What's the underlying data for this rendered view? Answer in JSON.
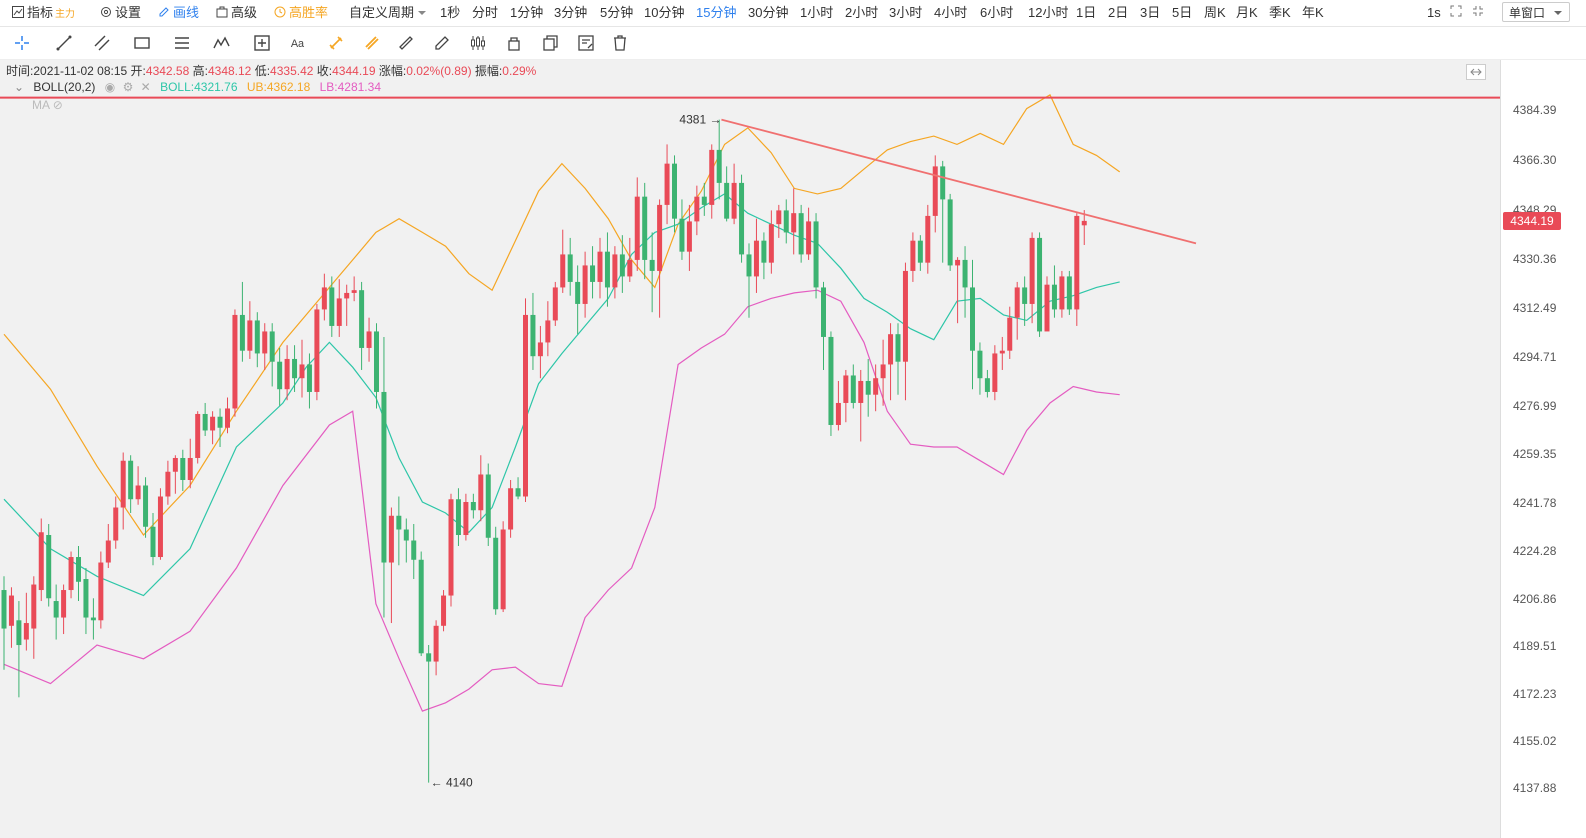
{
  "topbar": {
    "indicator": "指标",
    "indicator_sub": "主力",
    "settings": "设置",
    "draw": "画线",
    "advanced": "高级",
    "winrate": "高胜率",
    "custom_period": "自定义周期",
    "periods": [
      "1秒",
      "分时",
      "1分钟",
      "3分钟",
      "5分钟",
      "10分钟",
      "15分钟",
      "30分钟",
      "1小时",
      "2小时",
      "3小时",
      "4小时",
      "6小时",
      "12小时",
      "1日",
      "2日",
      "3日",
      "5日",
      "周K",
      "月K",
      "季K",
      "年K"
    ],
    "active_period": "15分钟",
    "interval": "1s",
    "window_mode": "单窗口"
  },
  "info": {
    "time_label": "时间:",
    "time": "2021-11-02 08:15",
    "open_label": "开:",
    "open": "4342.58",
    "high_label": "高:",
    "high": "4348.12",
    "low_label": "低:",
    "low": "4335.42",
    "close_label": "收:",
    "close": "4344.19",
    "change_label": "涨幅:",
    "change": "0.02%(0.89)",
    "amp_label": "振幅:",
    "amp": "0.29%"
  },
  "boll": {
    "name": "BOLL(20,2)",
    "mid_label": "BOLL:",
    "mid": "4321.76",
    "ub_label": "UB:",
    "ub": "4362.18",
    "lb_label": "LB:",
    "lb": "4281.34"
  },
  "ma_label": "MA",
  "annotations": {
    "high_mark": "4381",
    "low_mark": "4140"
  },
  "current_price": "4344.19",
  "colors": {
    "up": "#e94a57",
    "down": "#3cb371",
    "mid": "#2dc6a8",
    "ub": "#f5a623",
    "lb": "#e45cc1",
    "trend": "#f07070",
    "hline": "#e94a57"
  },
  "chart_data": {
    "type": "candlestick",
    "y_range": [
      4130,
      4390
    ],
    "y_ticks": [
      "4384.39",
      "4366.30",
      "4348.29",
      "4330.36",
      "4312.49",
      "4294.71",
      "4276.99",
      "4259.35",
      "4241.78",
      "4224.28",
      "4206.86",
      "4189.51",
      "4172.23",
      "4155.02",
      "4137.88"
    ],
    "horizontal_line": 4389,
    "trend_line": {
      "from_index": 96.3,
      "from_price": 4381,
      "to_index": 160,
      "to_price": 4336
    },
    "candles": [
      [
        4210,
        4196,
        4215,
        4181
      ],
      [
        4197,
        4208,
        4211,
        4189
      ],
      [
        4199,
        4190,
        4206,
        4171
      ],
      [
        4192,
        4198,
        4209,
        4188
      ],
      [
        4196,
        4212,
        4215,
        4185
      ],
      [
        4210,
        4231,
        4236,
        4206
      ],
      [
        4230,
        4207,
        4234,
        4204
      ],
      [
        4206,
        4200,
        4212,
        4192
      ],
      [
        4200,
        4210,
        4212,
        4194
      ],
      [
        4210,
        4222,
        4224,
        4207
      ],
      [
        4222,
        4213,
        4226,
        4206
      ],
      [
        4214,
        4200,
        4218,
        4194
      ],
      [
        4200,
        4199,
        4207,
        4192
      ],
      [
        4199,
        4220,
        4224,
        4196
      ],
      [
        4220,
        4228,
        4234,
        4218
      ],
      [
        4228,
        4240,
        4244,
        4225
      ],
      [
        4240,
        4257,
        4260,
        4232
      ],
      [
        4257,
        4243,
        4259,
        4238
      ],
      [
        4243,
        4248,
        4255,
        4241
      ],
      [
        4248,
        4233,
        4251,
        4229
      ],
      [
        4233,
        4222,
        4238,
        4219
      ],
      [
        4222,
        4244,
        4247,
        4221
      ],
      [
        4244,
        4253,
        4257,
        4241
      ],
      [
        4253,
        4258,
        4259,
        4245
      ],
      [
        4258,
        4250,
        4261,
        4246
      ],
      [
        4250,
        4258,
        4265,
        4247
      ],
      [
        4258,
        4274,
        4275,
        4256
      ],
      [
        4274,
        4268,
        4278,
        4266
      ],
      [
        4268,
        4273,
        4275,
        4263
      ],
      [
        4273,
        4269,
        4276,
        4262
      ],
      [
        4269,
        4276,
        4280,
        4267
      ],
      [
        4276,
        4310,
        4312,
        4273
      ],
      [
        4310,
        4297,
        4322,
        4293
      ],
      [
        4297,
        4308,
        4315,
        4294
      ],
      [
        4308,
        4296,
        4311,
        4291
      ],
      [
        4296,
        4304,
        4307,
        4290
      ],
      [
        4304,
        4293,
        4307,
        4284
      ],
      [
        4293,
        4283,
        4298,
        4277
      ],
      [
        4283,
        4294,
        4299,
        4279
      ],
      [
        4294,
        4287,
        4299,
        4282
      ],
      [
        4287,
        4292,
        4301,
        4280
      ],
      [
        4292,
        4282,
        4296,
        4276
      ],
      [
        4282,
        4312,
        4314,
        4279
      ],
      [
        4312,
        4320,
        4325,
        4308
      ],
      [
        4320,
        4306,
        4324,
        4302
      ],
      [
        4306,
        4316,
        4323,
        4302
      ],
      [
        4316,
        4318,
        4321,
        4306
      ],
      [
        4318,
        4319,
        4324,
        4315
      ],
      [
        4319,
        4298,
        4322,
        4290
      ],
      [
        4298,
        4304,
        4309,
        4293
      ],
      [
        4304,
        4282,
        4307,
        4276
      ],
      [
        4282,
        4220,
        4302,
        4200
      ],
      [
        4220,
        4237,
        4240,
        4198
      ],
      [
        4237,
        4232,
        4244,
        4219
      ],
      [
        4232,
        4228,
        4236,
        4220
      ],
      [
        4228,
        4221,
        4234,
        4214
      ],
      [
        4221,
        4187,
        4224,
        4186
      ],
      [
        4187,
        4184,
        4190,
        4140
      ],
      [
        4184,
        4197,
        4199,
        4179
      ],
      [
        4197,
        4208,
        4210,
        4195
      ],
      [
        4208,
        4243,
        4245,
        4204
      ],
      [
        4243,
        4230,
        4247,
        4226
      ],
      [
        4230,
        4242,
        4245,
        4228
      ],
      [
        4242,
        4239,
        4245,
        4236
      ],
      [
        4239,
        4252,
        4259,
        4235
      ],
      [
        4252,
        4229,
        4256,
        4226
      ],
      [
        4229,
        4203,
        4233,
        4201
      ],
      [
        4203,
        4232,
        4235,
        4202
      ],
      [
        4232,
        4247,
        4250,
        4229
      ],
      [
        4247,
        4244,
        4251,
        4243
      ],
      [
        4244,
        4310,
        4316,
        4242
      ],
      [
        4310,
        4295,
        4318,
        4290
      ],
      [
        4295,
        4300,
        4306,
        4287
      ],
      [
        4300,
        4308,
        4315,
        4295
      ],
      [
        4308,
        4320,
        4322,
        4306
      ],
      [
        4320,
        4332,
        4341,
        4318
      ],
      [
        4332,
        4322,
        4338,
        4317
      ],
      [
        4322,
        4314,
        4328,
        4303
      ],
      [
        4314,
        4328,
        4333,
        4309
      ],
      [
        4328,
        4322,
        4335,
        4316
      ],
      [
        4322,
        4333,
        4338,
        4316
      ],
      [
        4333,
        4320,
        4340,
        4313
      ],
      [
        4320,
        4332,
        4335,
        4316
      ],
      [
        4332,
        4324,
        4339,
        4318
      ],
      [
        4324,
        4330,
        4338,
        4322
      ],
      [
        4330,
        4353,
        4360,
        4326
      ],
      [
        4353,
        4330,
        4358,
        4323
      ],
      [
        4330,
        4326,
        4340,
        4311
      ],
      [
        4326,
        4350,
        4352,
        4309
      ],
      [
        4350,
        4365,
        4372,
        4343
      ],
      [
        4365,
        4345,
        4368,
        4340
      ],
      [
        4345,
        4333,
        4352,
        4330
      ],
      [
        4333,
        4344,
        4350,
        4326
      ],
      [
        4344,
        4353,
        4357,
        4339
      ],
      [
        4353,
        4350,
        4358,
        4346
      ],
      [
        4350,
        4370,
        4372,
        4345
      ],
      [
        4370,
        4358,
        4381,
        4352
      ],
      [
        4358,
        4345,
        4364,
        4344
      ],
      [
        4345,
        4358,
        4365,
        4343
      ],
      [
        4358,
        4332,
        4361,
        4329
      ],
      [
        4332,
        4324,
        4336,
        4309
      ],
      [
        4324,
        4337,
        4345,
        4318
      ],
      [
        4337,
        4329,
        4340,
        4323
      ],
      [
        4329,
        4343,
        4348,
        4325
      ],
      [
        4343,
        4348,
        4350,
        4338
      ],
      [
        4348,
        4340,
        4352,
        4336
      ],
      [
        4340,
        4347,
        4356,
        4332
      ],
      [
        4347,
        4332,
        4350,
        4329
      ],
      [
        4332,
        4344,
        4349,
        4330
      ],
      [
        4344,
        4320,
        4347,
        4316
      ],
      [
        4320,
        4302,
        4322,
        4290
      ],
      [
        4302,
        4270,
        4304,
        4266
      ],
      [
        4270,
        4278,
        4286,
        4268
      ],
      [
        4278,
        4288,
        4290,
        4271
      ],
      [
        4288,
        4278,
        4292,
        4276
      ],
      [
        4278,
        4286,
        4290,
        4264
      ],
      [
        4286,
        4281,
        4294,
        4273
      ],
      [
        4281,
        4287,
        4292,
        4275
      ],
      [
        4287,
        4292,
        4301,
        4277
      ],
      [
        4292,
        4303,
        4307,
        4279
      ],
      [
        4303,
        4293,
        4307,
        4281
      ],
      [
        4293,
        4326,
        4329,
        4279
      ],
      [
        4326,
        4337,
        4340,
        4322
      ],
      [
        4337,
        4329,
        4339,
        4326
      ],
      [
        4329,
        4346,
        4350,
        4325
      ],
      [
        4346,
        4364,
        4368,
        4340
      ],
      [
        4364,
        4352,
        4366,
        4329
      ],
      [
        4352,
        4328,
        4354,
        4326
      ],
      [
        4328,
        4330,
        4331,
        4307
      ],
      [
        4330,
        4320,
        4335,
        4309
      ],
      [
        4320,
        4297,
        4330,
        4283
      ],
      [
        4297,
        4287,
        4300,
        4281
      ],
      [
        4287,
        4282,
        4290,
        4280
      ],
      [
        4282,
        4296,
        4299,
        4279
      ],
      [
        4296,
        4297,
        4302,
        4290
      ],
      [
        4297,
        4309,
        4313,
        4294
      ],
      [
        4309,
        4320,
        4322,
        4301
      ],
      [
        4320,
        4314,
        4324,
        4306
      ],
      [
        4314,
        4338,
        4340,
        4307
      ],
      [
        4338,
        4304,
        4340,
        4302
      ],
      [
        4304,
        4321,
        4324,
        4305
      ],
      [
        4321,
        4312,
        4328,
        4309
      ],
      [
        4312,
        4324,
        4326,
        4309
      ],
      [
        4324,
        4312,
        4326,
        4310
      ],
      [
        4312,
        4346,
        4347,
        4306
      ],
      [
        4342.58,
        4344.19,
        4348.12,
        4335.42
      ]
    ],
    "boll_mid": [
      [
        0,
        4243
      ],
      [
        8,
        4225
      ],
      [
        16,
        4215
      ],
      [
        24,
        4208
      ],
      [
        32,
        4225
      ],
      [
        40,
        4262
      ],
      [
        48,
        4278
      ],
      [
        52,
        4291
      ],
      [
        56,
        4300
      ],
      [
        60,
        4291
      ],
      [
        64,
        4280
      ],
      [
        68,
        4258
      ],
      [
        72,
        4242
      ],
      [
        76,
        4238
      ],
      [
        80,
        4231
      ],
      [
        84,
        4240
      ],
      [
        88,
        4262
      ],
      [
        92,
        4285
      ],
      [
        96,
        4296
      ],
      [
        100,
        4306
      ],
      [
        104,
        4316
      ],
      [
        108,
        4332
      ],
      [
        112,
        4340
      ],
      [
        116,
        4343
      ],
      [
        120,
        4349
      ],
      [
        124,
        4354
      ],
      [
        128,
        4347
      ],
      [
        132,
        4343
      ],
      [
        136,
        4339
      ],
      [
        140,
        4336
      ],
      [
        144,
        4327
      ],
      [
        148,
        4316
      ],
      [
        152,
        4311
      ],
      [
        156,
        4305
      ],
      [
        160,
        4301
      ],
      [
        164,
        4315
      ],
      [
        168,
        4316
      ],
      [
        172,
        4310
      ],
      [
        176,
        4308
      ],
      [
        180,
        4315
      ],
      [
        184,
        4317
      ],
      [
        188,
        4320
      ],
      [
        192,
        4322
      ]
    ],
    "boll_ub": [
      [
        0,
        4303
      ],
      [
        8,
        4283
      ],
      [
        16,
        4255
      ],
      [
        24,
        4230
      ],
      [
        32,
        4248
      ],
      [
        40,
        4275
      ],
      [
        48,
        4300
      ],
      [
        56,
        4320
      ],
      [
        60,
        4330
      ],
      [
        64,
        4340
      ],
      [
        68,
        4345
      ],
      [
        72,
        4340
      ],
      [
        76,
        4335
      ],
      [
        80,
        4325
      ],
      [
        84,
        4319
      ],
      [
        88,
        4337
      ],
      [
        92,
        4355
      ],
      [
        96,
        4365
      ],
      [
        100,
        4356
      ],
      [
        104,
        4345
      ],
      [
        108,
        4330
      ],
      [
        112,
        4320
      ],
      [
        116,
        4343
      ],
      [
        120,
        4355
      ],
      [
        124,
        4372
      ],
      [
        128,
        4378
      ],
      [
        132,
        4369
      ],
      [
        136,
        4356
      ],
      [
        140,
        4354
      ],
      [
        144,
        4356
      ],
      [
        148,
        4363
      ],
      [
        152,
        4370
      ],
      [
        156,
        4373
      ],
      [
        160,
        4375
      ],
      [
        164,
        4372
      ],
      [
        168,
        4376
      ],
      [
        172,
        4372
      ],
      [
        176,
        4385
      ],
      [
        180,
        4390
      ],
      [
        184,
        4372
      ],
      [
        188,
        4368
      ],
      [
        192,
        4362
      ]
    ],
    "boll_lb": [
      [
        0,
        4183
      ],
      [
        8,
        4176
      ],
      [
        16,
        4190
      ],
      [
        24,
        4185
      ],
      [
        32,
        4195
      ],
      [
        40,
        4218
      ],
      [
        48,
        4248
      ],
      [
        56,
        4270
      ],
      [
        60,
        4275
      ],
      [
        64,
        4205
      ],
      [
        68,
        4185
      ],
      [
        72,
        4166
      ],
      [
        76,
        4169
      ],
      [
        80,
        4174
      ],
      [
        84,
        4181
      ],
      [
        88,
        4182
      ],
      [
        92,
        4176
      ],
      [
        96,
        4175
      ],
      [
        100,
        4200
      ],
      [
        104,
        4210
      ],
      [
        108,
        4218
      ],
      [
        112,
        4240
      ],
      [
        116,
        4292
      ],
      [
        120,
        4298
      ],
      [
        124,
        4303
      ],
      [
        128,
        4313
      ],
      [
        132,
        4316
      ],
      [
        136,
        4318
      ],
      [
        140,
        4319
      ],
      [
        144,
        4315
      ],
      [
        148,
        4300
      ],
      [
        152,
        4275
      ],
      [
        156,
        4263
      ],
      [
        160,
        4262
      ],
      [
        164,
        4262
      ],
      [
        168,
        4257
      ],
      [
        172,
        4252
      ],
      [
        176,
        4268
      ],
      [
        180,
        4278
      ],
      [
        184,
        4284
      ],
      [
        188,
        4282
      ],
      [
        192,
        4281
      ]
    ]
  }
}
